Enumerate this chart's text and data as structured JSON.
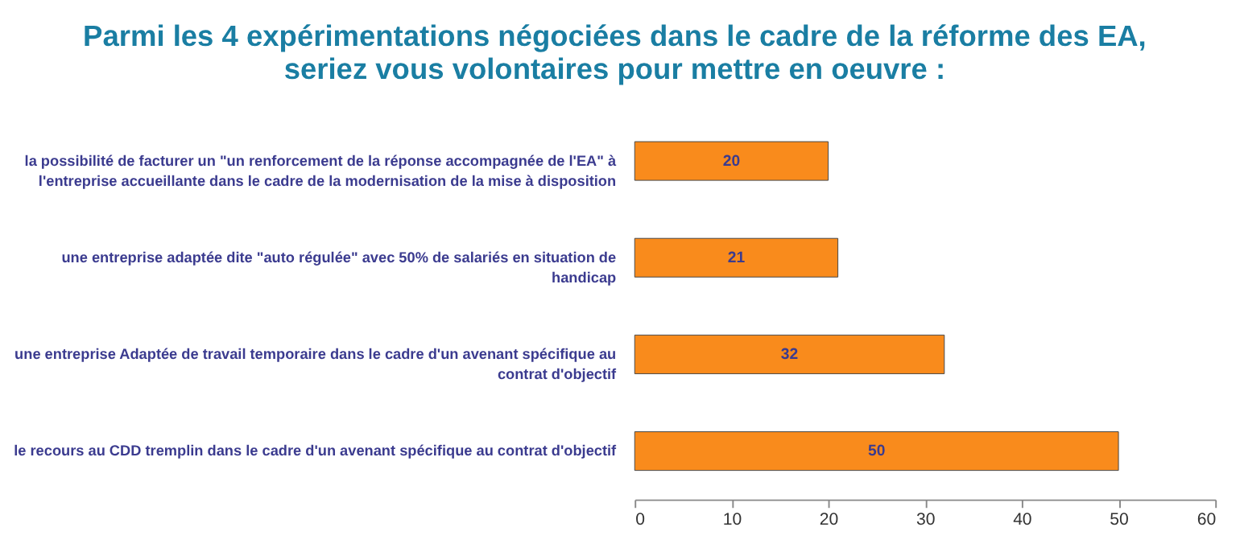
{
  "chart_data": {
    "type": "bar",
    "orientation": "horizontal",
    "title": "Parmi les 4 expérimentations négociées dans le cadre de la réforme des EA, seriez vous volontaires pour mettre en oeuvre :",
    "categories": [
      "la possibilité de facturer un \"un renforcement de la réponse accompagnée de l'EA\" à l'entreprise accueillante  dans le cadre de la modernisation de la mise à disposition",
      "une entreprise adaptée dite \"auto régulée\"  avec 50% de salariés en situation de handicap",
      "une entreprise Adaptée de travail temporaire dans le cadre d'un avenant spécifique au contrat d'objectif",
      "le recours au CDD tremplin dans le cadre d'un avenant spécifique au contrat d'objectif"
    ],
    "values": [
      20,
      21,
      32,
      50
    ],
    "color": "#f98b1c",
    "data_labels": true,
    "xlim": [
      0,
      60
    ],
    "xticks": [
      0,
      10,
      20,
      30,
      40,
      50,
      60
    ],
    "grid": false
  }
}
